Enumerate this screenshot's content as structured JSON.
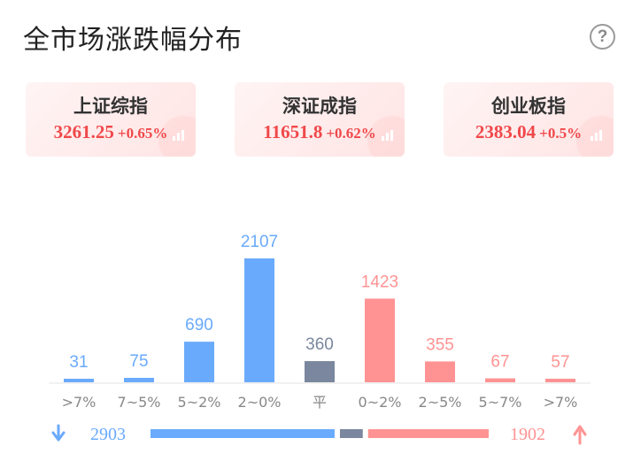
{
  "header": {
    "title": "全市场涨跌幅分布"
  },
  "indices": [
    {
      "name": "上证综指",
      "value": "3261.25",
      "change": "+0.65%"
    },
    {
      "name": "深证成指",
      "value": "11651.8",
      "change": "+0.62%"
    },
    {
      "name": "创业板指",
      "value": "2383.04",
      "change": "+0.5%"
    }
  ],
  "colors": {
    "down": "#6aaafc",
    "flat": "#7a879e",
    "up": "#ff9393",
    "index_text": "#f0484a"
  },
  "chart_data": {
    "type": "bar",
    "categories": [
      ">7%",
      "7~5%",
      "5~2%",
      "2~0%",
      "平",
      "0~2%",
      "2~5%",
      "5~7%",
      ">7%"
    ],
    "values": [
      31,
      75,
      690,
      2107,
      360,
      1423,
      355,
      67,
      57
    ],
    "groups": [
      "down",
      "down",
      "down",
      "down",
      "flat",
      "up",
      "up",
      "up",
      "up"
    ],
    "title": "",
    "xlabel": "",
    "ylabel": ""
  },
  "summary": {
    "down_count": "2903",
    "flat_count": 360,
    "up_count": "1902"
  }
}
